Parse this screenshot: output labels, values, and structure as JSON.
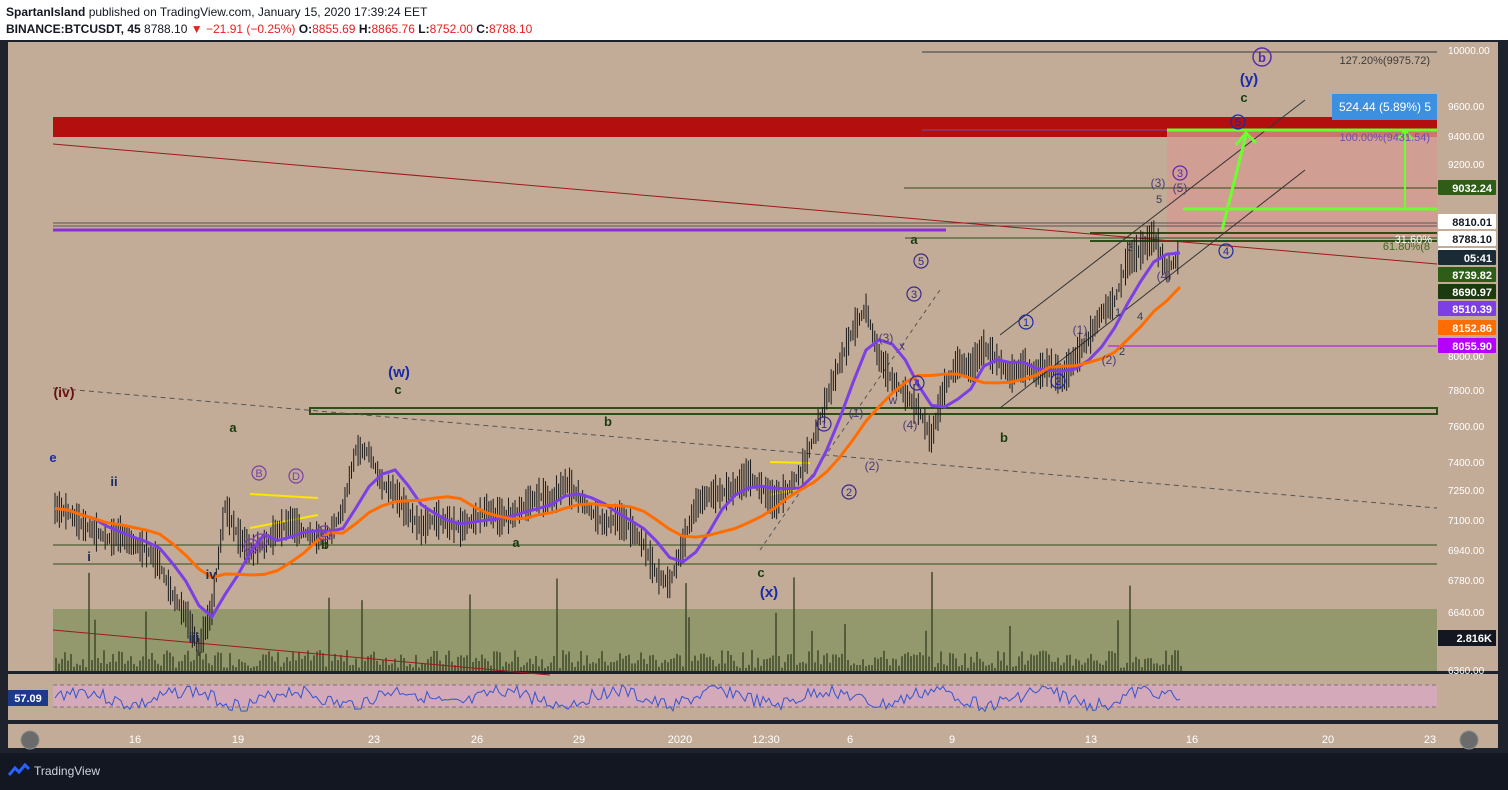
{
  "header": {
    "publisher": "SpartanIsland",
    "published_text": "published on TradingView.com, January 15, 2020 17:39:24 EET",
    "symbol": "BINANCE:BTCUSDT, 45",
    "last_price": "8788.10",
    "change": "−21.91 (−0.25%)",
    "o_label": "O:",
    "o_value": "8855.69",
    "h_label": "H:",
    "h_value": "8865.76",
    "l_label": "L:",
    "l_value": "8752.00",
    "c_label": "C:",
    "c_value": "8788.10"
  },
  "colors": {
    "chart_bg": "#c2ac98",
    "candles": "#1b1b1b",
    "ma_purple": "#7b3fe4",
    "ma_orange": "#ff6d00",
    "resistance_zone": "#b40f0f",
    "target_box": "#d69a92",
    "volume_zone": "#8f9768",
    "trend_green": "#3d6a1e",
    "fib_line": "#6b4fb6",
    "projection_green": "#6cff2e",
    "rsi_line": "#3454d1",
    "rsi_band": "#d8a9c2"
  },
  "chart_data": {
    "type": "candlestick",
    "symbol": "BINANCE:BTCUSDT",
    "interval": "45",
    "ylim": [
      6360,
      10000
    ],
    "y_ticks": [
      "10000.00",
      "9600.00",
      "9400.00",
      "9200.00",
      "8800.00",
      "8600.00",
      "8400.00",
      "8000.00",
      "7800.00",
      "7600.00",
      "7400.00",
      "7250.00",
      "7100.00",
      "6940.00",
      "6780.00",
      "6640.00",
      "6360.00"
    ],
    "x_ticks": [
      "16",
      "19",
      "23",
      "26",
      "29",
      "2020",
      "12:30",
      "6",
      "9",
      "13",
      "16",
      "20",
      "23"
    ],
    "path_points": [
      [
        0,
        7310
      ],
      [
        1,
        7290
      ],
      [
        2,
        7220
      ],
      [
        3,
        7180
      ],
      [
        4,
        7130
      ],
      [
        5,
        7160
      ],
      [
        6,
        7100
      ],
      [
        7,
        7070
      ],
      [
        8,
        6980
      ],
      [
        9,
        6800
      ],
      [
        10,
        6690
      ],
      [
        11,
        6500
      ],
      [
        12,
        6720
      ],
      [
        13,
        7320
      ],
      [
        14,
        7150
      ],
      [
        15,
        7060
      ],
      [
        16,
        7100
      ],
      [
        17,
        7180
      ],
      [
        18,
        7230
      ],
      [
        19,
        7170
      ],
      [
        20,
        7140
      ],
      [
        21,
        7160
      ],
      [
        22,
        7300
      ],
      [
        23,
        7650
      ],
      [
        24,
        7640
      ],
      [
        25,
        7450
      ],
      [
        26,
        7400
      ],
      [
        27,
        7280
      ],
      [
        28,
        7200
      ],
      [
        29,
        7250
      ],
      [
        30,
        7230
      ],
      [
        31,
        7200
      ],
      [
        32,
        7240
      ],
      [
        33,
        7300
      ],
      [
        34,
        7260
      ],
      [
        35,
        7270
      ],
      [
        36,
        7330
      ],
      [
        37,
        7380
      ],
      [
        38,
        7360
      ],
      [
        39,
        7460
      ],
      [
        40,
        7380
      ],
      [
        41,
        7290
      ],
      [
        42,
        7220
      ],
      [
        43,
        7250
      ],
      [
        44,
        7200
      ],
      [
        45,
        7100
      ],
      [
        46,
        6920
      ],
      [
        47,
        6870
      ],
      [
        48,
        7100
      ],
      [
        49,
        7330
      ],
      [
        50,
        7390
      ],
      [
        51,
        7400
      ],
      [
        52,
        7430
      ],
      [
        53,
        7500
      ],
      [
        54,
        7430
      ],
      [
        55,
        7350
      ],
      [
        56,
        7420
      ],
      [
        57,
        7520
      ],
      [
        58,
        7720
      ],
      [
        59,
        7950
      ],
      [
        60,
        8160
      ],
      [
        61,
        8350
      ],
      [
        62,
        8480
      ],
      [
        63,
        8190
      ],
      [
        64,
        8060
      ],
      [
        65,
        7980
      ],
      [
        66,
        7890
      ],
      [
        67,
        7720
      ],
      [
        68,
        8020
      ],
      [
        69,
        8160
      ],
      [
        70,
        8130
      ],
      [
        71,
        8250
      ],
      [
        72,
        8180
      ],
      [
        73,
        8090
      ],
      [
        74,
        8140
      ],
      [
        75,
        8100
      ],
      [
        76,
        8140
      ],
      [
        77,
        8070
      ],
      [
        78,
        8190
      ],
      [
        79,
        8300
      ],
      [
        80,
        8450
      ],
      [
        81,
        8520
      ],
      [
        82,
        8760
      ],
      [
        83,
        8820
      ],
      [
        84,
        8900
      ],
      [
        85,
        8700
      ],
      [
        86,
        8790
      ]
    ],
    "rsi": {
      "label": "57.09",
      "upper": 70,
      "lower": 30
    },
    "volume_label": "2.816K",
    "price_labels": [
      {
        "text": "9032.24",
        "price": 9032.24,
        "bg": "#2e5d17",
        "fg": "#ffffff"
      },
      {
        "text": "8810.01",
        "price": 8810.01,
        "bg": "#ffffff",
        "fg": "#131722"
      },
      {
        "text": "8788.10",
        "price": 8788.1,
        "bg": "#ffffff",
        "fg": "#131722"
      },
      {
        "text": "8",
        "price": 8735,
        "bg": "#ffffff",
        "fg": "#131722"
      },
      {
        "text": "05:41",
        "price": 8700,
        "bg": "#1b2b36",
        "fg": "#ffffff"
      },
      {
        "text": "8739.82",
        "price": 8630,
        "bg": "#2e5d17",
        "fg": "#ffffff"
      },
      {
        "text": "8690.97",
        "price": 8540,
        "bg": "#1b3a0e",
        "fg": "#ffffff"
      },
      {
        "text": "8510.39",
        "price": 8440,
        "bg": "#7b3fe4",
        "fg": "#ffffff"
      },
      {
        "text": "8152.86",
        "price": 8335,
        "bg": "#ff6d00",
        "fg": "#ffffff"
      },
      {
        "text": "8055.90",
        "price": 8235,
        "bg": "#b300ff",
        "fg": "#ffffff"
      }
    ],
    "annotations": {
      "fib_127": "127.20%(9975.72)",
      "fib_100": "100.00%(9431.54)",
      "fib_618": "61.80%(8",
      "fib_small": "31.60%",
      "measure": "524.44 (5.89%) 5"
    },
    "waves": {
      "iv_top": "(iv)",
      "w": "(w)",
      "x": "(x)",
      "y": "(y)",
      "b_circle": "b",
      "e": "e",
      "i": "i",
      "ii": "ii",
      "iii": "iii",
      "iv": "iv",
      "a": "a",
      "b": "b",
      "c": "c",
      "A": "A",
      "B": "B",
      "C": "C",
      "D": "D",
      "E": "E",
      "one": "1",
      "two": "2",
      "three": "3",
      "four": "4",
      "five": "5",
      "p1": "(1)",
      "p2": "(2)",
      "p3": "(3)",
      "p4": "(4)",
      "p5": "(5)",
      "w_small": "w",
      "x_small": "x"
    }
  },
  "footer": {
    "brand": "TradingView"
  }
}
